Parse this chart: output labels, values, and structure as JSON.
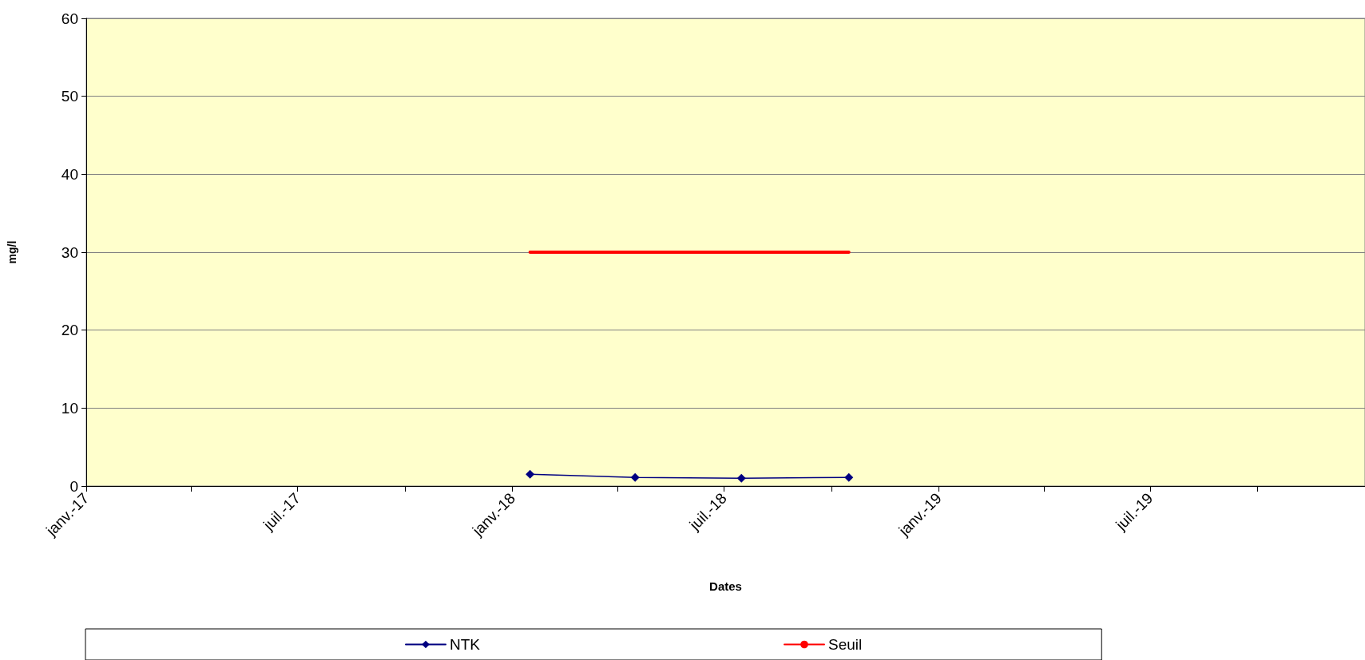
{
  "chart_data": {
    "type": "line",
    "xlabel": "Dates",
    "ylabel": "mg/l",
    "xlim": [
      "2017-01-01",
      "2020-01-01"
    ],
    "xticks": [
      {
        "value": "2017-01-01",
        "label": "janv.-17"
      },
      {
        "value": "2017-04-01",
        "label": null
      },
      {
        "value": "2017-07-01",
        "label": "juil.-17"
      },
      {
        "value": "2017-10-01",
        "label": null
      },
      {
        "value": "2018-01-01",
        "label": "janv.-18"
      },
      {
        "value": "2018-04-01",
        "label": null
      },
      {
        "value": "2018-07-01",
        "label": "juil.-18"
      },
      {
        "value": "2018-10-01",
        "label": null
      },
      {
        "value": "2019-01-01",
        "label": "janv.-19"
      },
      {
        "value": "2019-04-01",
        "label": null
      },
      {
        "value": "2019-07-01",
        "label": "juil.-19"
      },
      {
        "value": "2019-10-01",
        "label": null
      }
    ],
    "ylim": [
      0,
      60
    ],
    "yticks": [
      0,
      10,
      20,
      30,
      40,
      50,
      60
    ],
    "grid": "y",
    "legend": "bottom",
    "series": [
      {
        "name": "NTK",
        "color": "#000080",
        "marker": "diamond",
        "x": [
          "2018-01-16",
          "2018-04-16",
          "2018-07-16",
          "2018-10-16"
        ],
        "values": [
          1.5,
          1.1,
          1.0,
          1.1
        ]
      },
      {
        "name": "Seuil",
        "color": "#ff0000",
        "marker": "none",
        "x": [
          "2018-01-16",
          "2018-10-16"
        ],
        "values": [
          30,
          30
        ]
      }
    ]
  }
}
